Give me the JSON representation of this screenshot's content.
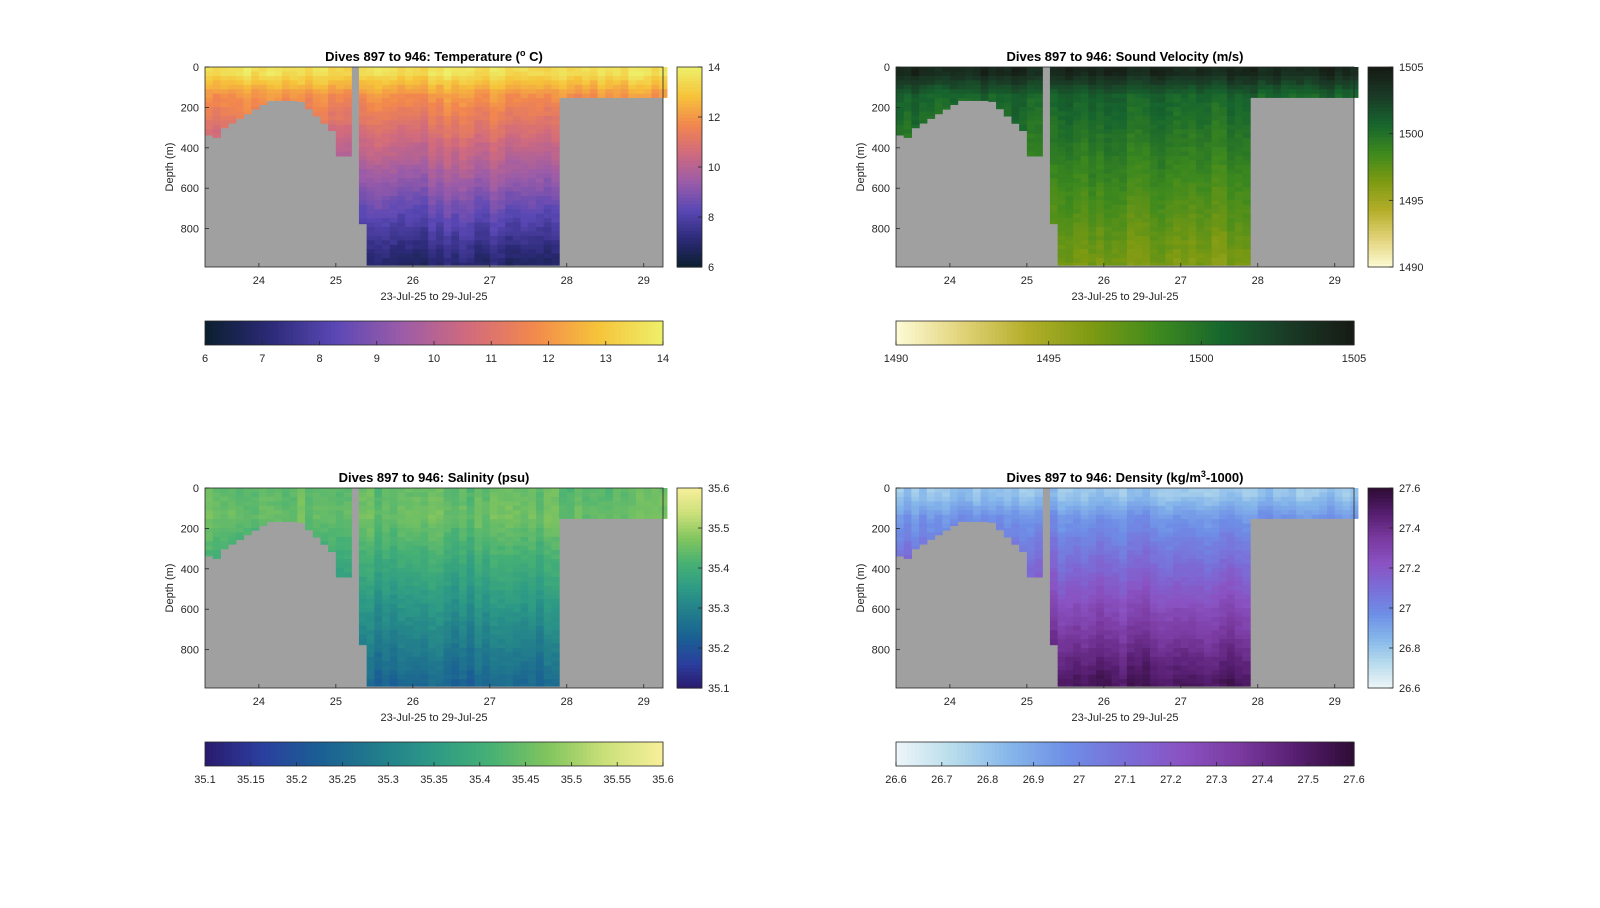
{
  "chart_data": [
    {
      "type": "heatmap",
      "panel": "temperature",
      "title_main": "Dives 897 to 946: Temperature (",
      "title_sup": "o",
      "title_end": " C)",
      "ylabel": "Depth (m)",
      "xlabel": "23-Jul-25 to 29-Jul-25",
      "x_ticks": [
        "24",
        "25",
        "26",
        "27",
        "28",
        "29"
      ],
      "y_ticks": [
        "0",
        "200",
        "400",
        "600",
        "800"
      ],
      "xlim": [
        23.3,
        29.25
      ],
      "ylim": [
        0,
        990
      ],
      "colorbar_right_ticks": [
        "6",
        "8",
        "10",
        "12",
        "14"
      ],
      "colorbar_bottom_ticks": [
        "6",
        "7",
        "8",
        "9",
        "10",
        "11",
        "12",
        "13",
        "14"
      ],
      "clim": [
        6,
        14
      ],
      "colormap": [
        "#0b1f2e",
        "#2c2a78",
        "#5a48b5",
        "#9b5ca8",
        "#d06a7e",
        "#f2874e",
        "#f6c33a",
        "#eef06a"
      ],
      "surface_value": 13.6,
      "mixed_value": 12.0,
      "deep_value": 7.0
    },
    {
      "type": "heatmap",
      "panel": "sound-velocity",
      "title_main": "Dives 897 to 946: Sound Velocity (m/s)",
      "title_sup": "",
      "title_end": "",
      "ylabel": "Depth (m)",
      "xlabel": "23-Jul-25 to 29-Jul-25",
      "x_ticks": [
        "24",
        "25",
        "26",
        "27",
        "28",
        "29"
      ],
      "y_ticks": [
        "0",
        "200",
        "400",
        "600",
        "800"
      ],
      "xlim": [
        23.3,
        29.25
      ],
      "ylim": [
        0,
        990
      ],
      "colorbar_right_ticks": [
        "1490",
        "1495",
        "1500",
        "1505"
      ],
      "colorbar_bottom_ticks": [
        "1490",
        "1495",
        "1500",
        "1505"
      ],
      "clim": [
        1490,
        1505
      ],
      "colormap": [
        "#fdfbd6",
        "#e2d37a",
        "#b4ae2a",
        "#7d9a12",
        "#3e8a1e",
        "#17652e",
        "#1a3a26",
        "#161a14"
      ],
      "surface_value": 1504,
      "mixed_value": 1500.8,
      "deep_value": 1496.5
    },
    {
      "type": "heatmap",
      "panel": "salinity",
      "title_main": "Dives 897 to 946: Salinity (psu)",
      "title_sup": "",
      "title_end": "",
      "ylabel": "Depth (m)",
      "xlabel": "23-Jul-25 to 29-Jul-25",
      "x_ticks": [
        "24",
        "25",
        "26",
        "27",
        "28",
        "29"
      ],
      "y_ticks": [
        "0",
        "200",
        "400",
        "600",
        "800"
      ],
      "xlim": [
        23.3,
        29.25
      ],
      "ylim": [
        0,
        990
      ],
      "colorbar_right_ticks": [
        "35.1",
        "35.2",
        "35.3",
        "35.4",
        "35.5",
        "35.6"
      ],
      "colorbar_bottom_ticks": [
        "35.1",
        "35.15",
        "35.2",
        "35.25",
        "35.3",
        "35.35",
        "35.4",
        "35.45",
        "35.5",
        "35.55",
        "35.6"
      ],
      "clim": [
        35.1,
        35.6
      ],
      "colormap": [
        "#2a1a6e",
        "#2b3f9e",
        "#1a5f94",
        "#217c8c",
        "#2d9a86",
        "#47b174",
        "#82c55e",
        "#cce07a",
        "#f7ef9a"
      ],
      "surface_value": 35.44,
      "mixed_value": 35.45,
      "deep_value": 35.24
    },
    {
      "type": "heatmap",
      "panel": "density",
      "title_main": "Dives 897 to 946: Density (kg/m",
      "title_sup": "3",
      "title_end": "-1000)",
      "ylabel": "Depth (m)",
      "xlabel": "23-Jul-25 to 29-Jul-25",
      "x_ticks": [
        "24",
        "25",
        "26",
        "27",
        "28",
        "29"
      ],
      "y_ticks": [
        "0",
        "200",
        "400",
        "600",
        "800"
      ],
      "xlim": [
        23.3,
        29.25
      ],
      "ylim": [
        0,
        990
      ],
      "colorbar_right_ticks": [
        "26.6",
        "26.8",
        "27",
        "27.2",
        "27.4",
        "27.6"
      ],
      "colorbar_bottom_ticks": [
        "26.6",
        "26.7",
        "26.8",
        "26.9",
        "27",
        "27.1",
        "27.2",
        "27.3",
        "27.4",
        "27.5",
        "27.6"
      ],
      "clim": [
        26.6,
        27.6
      ],
      "colormap": [
        "#eef6f8",
        "#b8dcec",
        "#85b6ea",
        "#6e8ee6",
        "#7a6ed8",
        "#8a52c2",
        "#7a3aa0",
        "#561e70",
        "#2e0c34"
      ],
      "surface_value": 26.8,
      "mixed_value": 26.95,
      "deep_value": 27.52
    }
  ]
}
